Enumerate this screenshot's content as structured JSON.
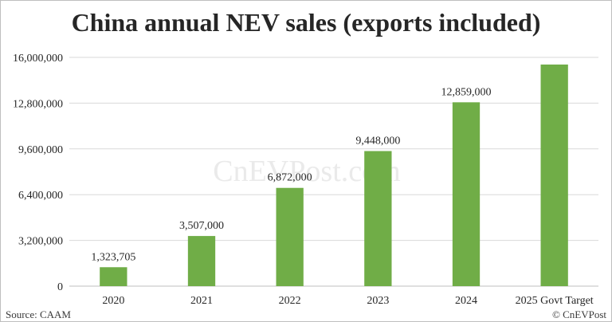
{
  "chart_data": {
    "type": "bar",
    "title": "China annual NEV sales (exports included)",
    "categories": [
      "2020",
      "2021",
      "2022",
      "2023",
      "2024",
      "2025 Govt Target"
    ],
    "values": [
      1323705,
      3507000,
      6872000,
      9448000,
      12859000,
      15500000
    ],
    "data_labels": [
      "1,323,705",
      "3,507,000",
      "6,872,000",
      "9,448,000",
      "12,859,000",
      ""
    ],
    "ylim": [
      0,
      16000000
    ],
    "yticks": [
      0,
      3200000,
      6400000,
      9600000,
      12800000,
      16000000
    ],
    "ytick_labels": [
      "0",
      "3,200,000",
      "6,400,000",
      "9,600,000",
      "12,800,000",
      "16,000,000"
    ],
    "grid": true,
    "bar_color": "#70ad47",
    "grid_color": "#d9d9d9",
    "legend": "none"
  },
  "source": "Source: CAAM",
  "copyright": "© CnEVPost",
  "watermark": "CnEVPost.com"
}
